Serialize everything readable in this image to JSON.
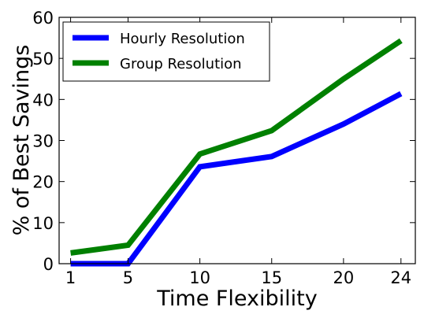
{
  "chart_data": {
    "type": "line",
    "title": "",
    "xlabel": "Time Flexibility",
    "ylabel": "% of Best Savings",
    "x": [
      1,
      5,
      10,
      15,
      20,
      24
    ],
    "xlim": [
      0.2,
      25
    ],
    "ylim": [
      0,
      60
    ],
    "xticks": [
      1,
      5,
      10,
      15,
      20,
      24
    ],
    "yticks": [
      0,
      10,
      20,
      30,
      40,
      50,
      60
    ],
    "grid": false,
    "legend_position": "top-left",
    "series": [
      {
        "name": "Hourly Resolution",
        "color": "#0000ff",
        "values": [
          0,
          0,
          23.6,
          26.1,
          34.0,
          41.4
        ]
      },
      {
        "name": "Group Resolution",
        "color": "#008000",
        "values": [
          2.6,
          4.5,
          26.7,
          32.4,
          45.0,
          54.3
        ]
      }
    ]
  }
}
